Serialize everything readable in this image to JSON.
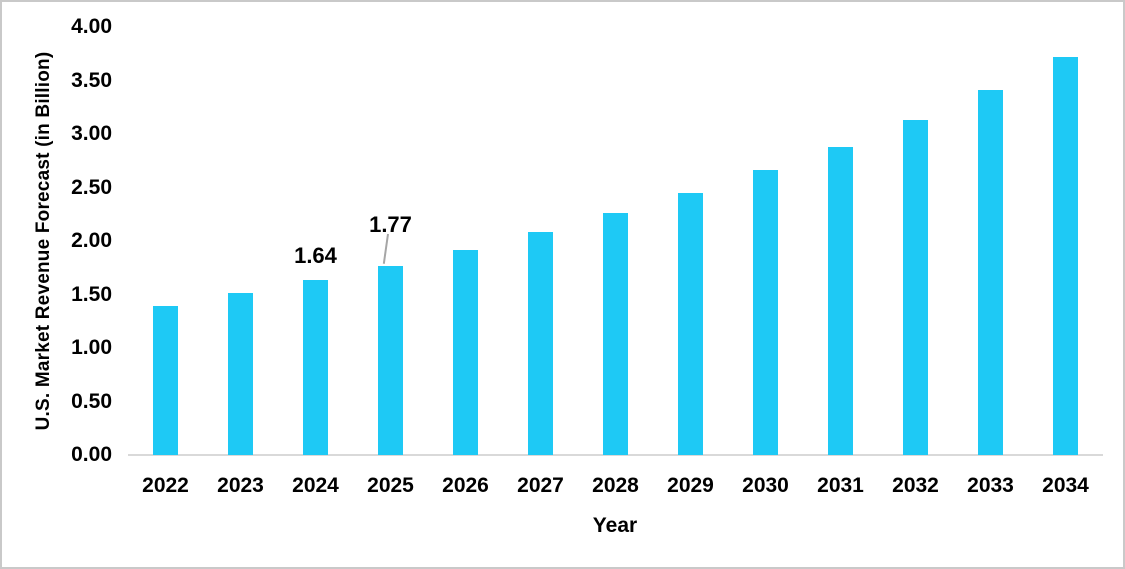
{
  "chart_data": {
    "type": "bar",
    "title": "",
    "xlabel": "Year",
    "ylabel": "U.S. Market Revenue Forecast (in Billion)",
    "categories": [
      "2022",
      "2023",
      "2024",
      "2025",
      "2026",
      "2027",
      "2028",
      "2029",
      "2030",
      "2031",
      "2032",
      "2033",
      "2034"
    ],
    "values": [
      1.39,
      1.51,
      1.64,
      1.77,
      1.92,
      2.08,
      2.26,
      2.45,
      2.66,
      2.88,
      3.13,
      3.41,
      3.72
    ],
    "y_ticks": [
      "0.00",
      "0.50",
      "1.00",
      "1.50",
      "2.00",
      "2.50",
      "3.00",
      "3.50",
      "4.00"
    ],
    "ylim": [
      0,
      4.0
    ],
    "grid": false,
    "legend": "none",
    "data_labels": [
      {
        "category": "2024",
        "text": "1.64",
        "leader_line": false
      },
      {
        "category": "2025",
        "text": "1.77",
        "leader_line": true
      }
    ],
    "colors": {
      "bar": "#1EC9F5",
      "axis_line": "#D9D9D9",
      "leader_line": "#A6A6A6",
      "border": "#C9C9C9",
      "text": "#000000",
      "background": "#FFFFFF"
    }
  }
}
